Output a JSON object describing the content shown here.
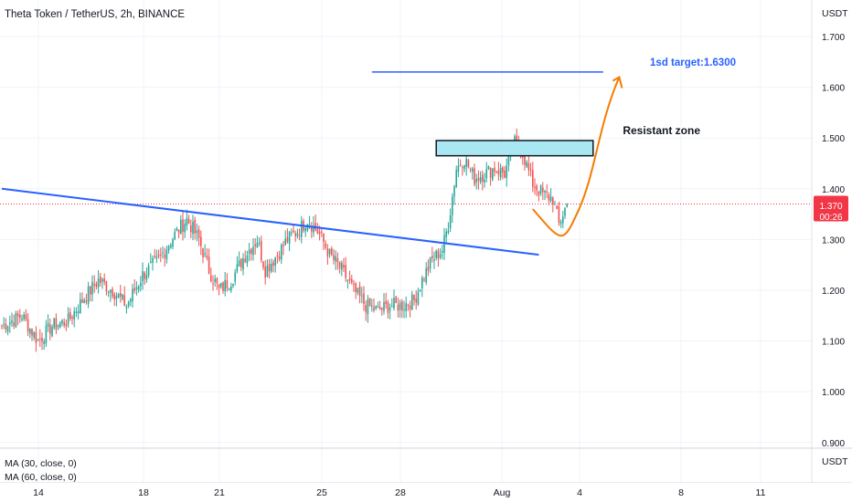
{
  "header": {
    "title": "Theta Token / TetherUS, 2h, BINANCE"
  },
  "price_axis": {
    "currency": "USDT",
    "ticks": [
      "1.700",
      "1.600",
      "1.500",
      "1.400",
      "1.300",
      "1.200",
      "1.100",
      "1.000",
      "0.900"
    ],
    "current_price_label": "1.370",
    "countdown_label": "00:26"
  },
  "indicator_pane": {
    "label1": "MA (30, close, 0)",
    "label2": "MA (60, close, 0)",
    "currency": "USDT"
  },
  "time_axis": {
    "ticks": [
      "14",
      "18",
      "21",
      "25",
      "28",
      "Aug",
      "4",
      "8",
      "11"
    ]
  },
  "annotations": {
    "target_label": "1sd target:1.6300",
    "resistance_label": "Resistant zone"
  },
  "colors": {
    "up": "#26a69a",
    "down": "#ef5350",
    "trendline": "#2962ff",
    "projection": "#f57c00",
    "zone_fill": "#a9e8f2",
    "price_label_bg": "#f23645"
  },
  "chart_data": {
    "type": "candlestick",
    "title": "Theta Token / TetherUS, 2h, BINANCE",
    "ylabel": "USDT",
    "ylim": [
      0.9,
      1.75
    ],
    "x_ticks": [
      "14",
      "18",
      "21",
      "25",
      "28",
      "Aug",
      "4",
      "8",
      "11"
    ],
    "last_price": 1.37,
    "anchors": [
      [
        0,
        1.13
      ],
      [
        10,
        1.15
      ],
      [
        18,
        1.1
      ],
      [
        25,
        1.13
      ],
      [
        33,
        1.14
      ],
      [
        40,
        1.18
      ],
      [
        48,
        1.22
      ],
      [
        55,
        1.2
      ],
      [
        62,
        1.17
      ],
      [
        70,
        1.23
      ],
      [
        78,
        1.26
      ],
      [
        86,
        1.31
      ],
      [
        92,
        1.34
      ],
      [
        98,
        1.3
      ],
      [
        103,
        1.24
      ],
      [
        108,
        1.2
      ],
      [
        114,
        1.22
      ],
      [
        121,
        1.27
      ],
      [
        127,
        1.3
      ],
      [
        131,
        1.24
      ],
      [
        137,
        1.27
      ],
      [
        142,
        1.3
      ],
      [
        148,
        1.32
      ],
      [
        152,
        1.34
      ],
      [
        158,
        1.31
      ],
      [
        163,
        1.27
      ],
      [
        169,
        1.24
      ],
      [
        175,
        1.2
      ],
      [
        181,
        1.17
      ],
      [
        187,
        1.16
      ],
      [
        193,
        1.17
      ],
      [
        199,
        1.17
      ],
      [
        205,
        1.18
      ],
      [
        209,
        1.22
      ],
      [
        214,
        1.26
      ],
      [
        219,
        1.28
      ],
      [
        222,
        1.33
      ],
      [
        226,
        1.44
      ],
      [
        230,
        1.46
      ],
      [
        235,
        1.42
      ],
      [
        240,
        1.43
      ],
      [
        245,
        1.44
      ],
      [
        250,
        1.43
      ],
      [
        255,
        1.49
      ],
      [
        259,
        1.47
      ],
      [
        264,
        1.41
      ],
      [
        269,
        1.39
      ],
      [
        274,
        1.38
      ],
      [
        277,
        1.33
      ],
      [
        281,
        1.37
      ]
    ],
    "trendline": {
      "from": [
        0,
        1.4
      ],
      "to": [
        267,
        1.27
      ]
    },
    "resistance_zone": {
      "low": 1.465,
      "high": 1.495,
      "from": 216,
      "to": 294
    },
    "target_line": {
      "price": 1.63,
      "from": 184,
      "to": 299
    },
    "projection": [
      [
        264,
        1.36
      ],
      [
        279,
        1.29
      ],
      [
        287,
        1.36
      ],
      [
        297,
        1.53
      ],
      [
        307,
        1.62
      ]
    ]
  }
}
